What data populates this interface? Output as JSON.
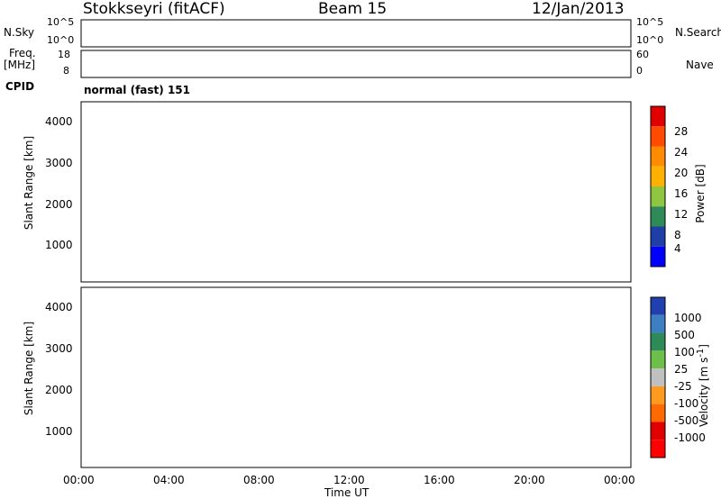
{
  "header": {
    "station": "Stokkseyri (fitACF)",
    "beam": "Beam 15",
    "date": "12/Jan/2013"
  },
  "top_panels": {
    "nsky_label": "N.Sky",
    "nsky_ticks": [
      "10^5",
      "10^0"
    ],
    "nsearch_label": "N.Search",
    "nsearch_ticks": [
      "10^5",
      "10^0"
    ],
    "freq_label": "Freq.",
    "freq_unit": "[MHz]",
    "freq_ticks": [
      "18",
      "8"
    ],
    "nave_label": "Nave",
    "nave_ticks": [
      "60",
      "0"
    ],
    "cpid_label": "CPID",
    "cpid_value": "normal (fast) 151"
  },
  "chart_data": [
    {
      "type": "heatmap",
      "name": "power",
      "ylabel": "Slant Range [km]",
      "ylim": [
        180,
        4600
      ],
      "yticks": [
        "4000",
        "3000",
        "2000",
        "1000"
      ],
      "x_range_hours": [
        0,
        24
      ],
      "colorbar": {
        "label": "Power [dB]",
        "ticks": [
          "28",
          "24",
          "20",
          "16",
          "12",
          "8",
          "4"
        ],
        "colors": [
          "#e00000",
          "#ff4a00",
          "#ff8c00",
          "#ffb000",
          "#8ec63f",
          "#2e8b57",
          "#1e3fa8",
          "#0000ff"
        ]
      }
    },
    {
      "type": "heatmap",
      "name": "velocity",
      "ylabel": "Slant Range [km]",
      "ylim": [
        180,
        4600
      ],
      "yticks": [
        "4000",
        "3000",
        "2000",
        "1000"
      ],
      "x_range_hours": [
        0,
        24
      ],
      "xlabel": "Time UT",
      "xticks": [
        "00:00",
        "04:00",
        "08:00",
        "12:00",
        "16:00",
        "20:00",
        "00:00"
      ],
      "colorbar": {
        "label": "Velocity [m s",
        "label_sup": "-1",
        "label_end": "]",
        "ticks": [
          "1000",
          "500",
          "100",
          "25",
          "-25",
          "-100",
          "-500",
          "-1000"
        ],
        "colors": [
          "#2040b0",
          "#3d7fc0",
          "#2e8b57",
          "#6cc04a",
          "#c0c0c0",
          "#ff9a20",
          "#ff6a00",
          "#e00000",
          "#ff0000"
        ]
      }
    }
  ]
}
